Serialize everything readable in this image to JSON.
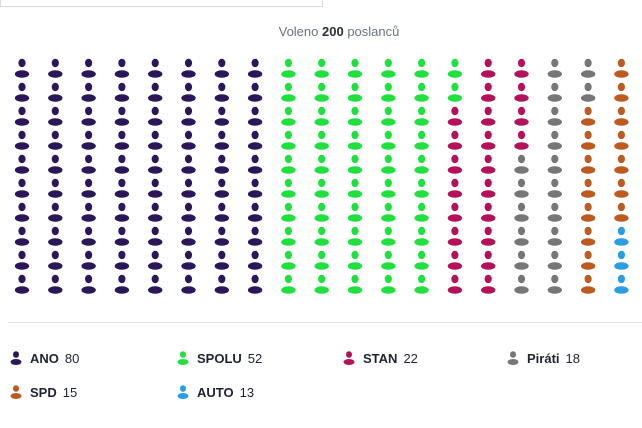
{
  "header": {
    "prefix": "Voleno",
    "count": "200",
    "suffix": "poslanců"
  },
  "parties": [
    {
      "name": "ANO",
      "seats": 80,
      "seats_label": "80",
      "color": "#2a1659"
    },
    {
      "name": "SPOLU",
      "seats": 52,
      "seats_label": "52",
      "color": "#1fe03c"
    },
    {
      "name": "STAN",
      "seats": 22,
      "seats_label": "22",
      "color": "#b3125a"
    },
    {
      "name": "Piráti",
      "seats": 18,
      "seats_label": "18",
      "color": "#767676"
    },
    {
      "name": "SPD",
      "seats": 15,
      "seats_label": "15",
      "color": "#bd5a22"
    },
    {
      "name": "AUTO",
      "seats": 13,
      "seats_label": "13",
      "color": "#2a9ee2"
    }
  ]
}
